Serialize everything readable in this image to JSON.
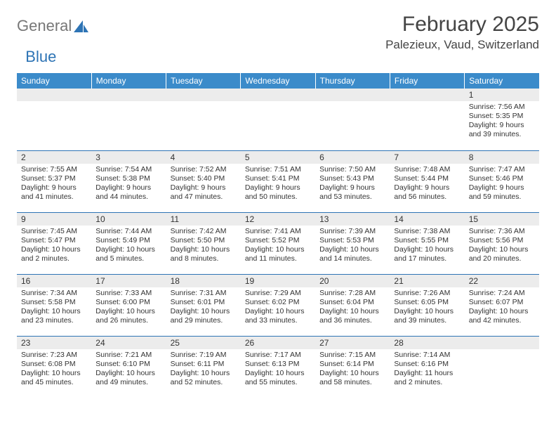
{
  "logo": {
    "text1": "General",
    "text2": "Blue"
  },
  "title": "February 2025",
  "location": "Palezieux, Vaud, Switzerland",
  "colors": {
    "header_bg": "#3b8bca",
    "header_text": "#ffffff",
    "daynum_bg": "#ececec",
    "border": "#2e74b5",
    "logo_gray": "#777777",
    "logo_blue": "#2e74b5"
  },
  "weekdays": [
    "Sunday",
    "Monday",
    "Tuesday",
    "Wednesday",
    "Thursday",
    "Friday",
    "Saturday"
  ],
  "weeks": [
    [
      null,
      null,
      null,
      null,
      null,
      null,
      {
        "d": "1",
        "sr": "7:56 AM",
        "ss": "5:35 PM",
        "dl": "9 hours and 39 minutes."
      }
    ],
    [
      {
        "d": "2",
        "sr": "7:55 AM",
        "ss": "5:37 PM",
        "dl": "9 hours and 41 minutes."
      },
      {
        "d": "3",
        "sr": "7:54 AM",
        "ss": "5:38 PM",
        "dl": "9 hours and 44 minutes."
      },
      {
        "d": "4",
        "sr": "7:52 AM",
        "ss": "5:40 PM",
        "dl": "9 hours and 47 minutes."
      },
      {
        "d": "5",
        "sr": "7:51 AM",
        "ss": "5:41 PM",
        "dl": "9 hours and 50 minutes."
      },
      {
        "d": "6",
        "sr": "7:50 AM",
        "ss": "5:43 PM",
        "dl": "9 hours and 53 minutes."
      },
      {
        "d": "7",
        "sr": "7:48 AM",
        "ss": "5:44 PM",
        "dl": "9 hours and 56 minutes."
      },
      {
        "d": "8",
        "sr": "7:47 AM",
        "ss": "5:46 PM",
        "dl": "9 hours and 59 minutes."
      }
    ],
    [
      {
        "d": "9",
        "sr": "7:45 AM",
        "ss": "5:47 PM",
        "dl": "10 hours and 2 minutes."
      },
      {
        "d": "10",
        "sr": "7:44 AM",
        "ss": "5:49 PM",
        "dl": "10 hours and 5 minutes."
      },
      {
        "d": "11",
        "sr": "7:42 AM",
        "ss": "5:50 PM",
        "dl": "10 hours and 8 minutes."
      },
      {
        "d": "12",
        "sr": "7:41 AM",
        "ss": "5:52 PM",
        "dl": "10 hours and 11 minutes."
      },
      {
        "d": "13",
        "sr": "7:39 AM",
        "ss": "5:53 PM",
        "dl": "10 hours and 14 minutes."
      },
      {
        "d": "14",
        "sr": "7:38 AM",
        "ss": "5:55 PM",
        "dl": "10 hours and 17 minutes."
      },
      {
        "d": "15",
        "sr": "7:36 AM",
        "ss": "5:56 PM",
        "dl": "10 hours and 20 minutes."
      }
    ],
    [
      {
        "d": "16",
        "sr": "7:34 AM",
        "ss": "5:58 PM",
        "dl": "10 hours and 23 minutes."
      },
      {
        "d": "17",
        "sr": "7:33 AM",
        "ss": "6:00 PM",
        "dl": "10 hours and 26 minutes."
      },
      {
        "d": "18",
        "sr": "7:31 AM",
        "ss": "6:01 PM",
        "dl": "10 hours and 29 minutes."
      },
      {
        "d": "19",
        "sr": "7:29 AM",
        "ss": "6:02 PM",
        "dl": "10 hours and 33 minutes."
      },
      {
        "d": "20",
        "sr": "7:28 AM",
        "ss": "6:04 PM",
        "dl": "10 hours and 36 minutes."
      },
      {
        "d": "21",
        "sr": "7:26 AM",
        "ss": "6:05 PM",
        "dl": "10 hours and 39 minutes."
      },
      {
        "d": "22",
        "sr": "7:24 AM",
        "ss": "6:07 PM",
        "dl": "10 hours and 42 minutes."
      }
    ],
    [
      {
        "d": "23",
        "sr": "7:23 AM",
        "ss": "6:08 PM",
        "dl": "10 hours and 45 minutes."
      },
      {
        "d": "24",
        "sr": "7:21 AM",
        "ss": "6:10 PM",
        "dl": "10 hours and 49 minutes."
      },
      {
        "d": "25",
        "sr": "7:19 AM",
        "ss": "6:11 PM",
        "dl": "10 hours and 52 minutes."
      },
      {
        "d": "26",
        "sr": "7:17 AM",
        "ss": "6:13 PM",
        "dl": "10 hours and 55 minutes."
      },
      {
        "d": "27",
        "sr": "7:15 AM",
        "ss": "6:14 PM",
        "dl": "10 hours and 58 minutes."
      },
      {
        "d": "28",
        "sr": "7:14 AM",
        "ss": "6:16 PM",
        "dl": "11 hours and 2 minutes."
      },
      null
    ]
  ],
  "labels": {
    "sunrise": "Sunrise:",
    "sunset": "Sunset:",
    "daylight": "Daylight:"
  }
}
